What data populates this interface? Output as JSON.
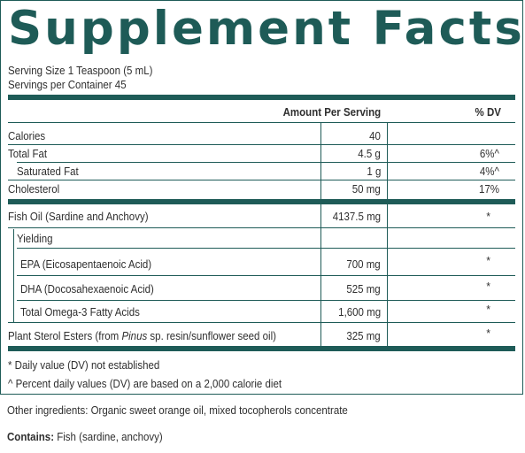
{
  "title": "Supplement Facts",
  "serving_size": "Serving Size 1 Teaspoon (5 mL)",
  "servings_per_container": "Servings per Container 45",
  "header": {
    "amount": "Amount Per Serving",
    "dv": "% DV"
  },
  "rows_a": [
    {
      "name": "Calories",
      "amount": "40",
      "dv": ""
    },
    {
      "name": "Total Fat",
      "amount": "4.5 g",
      "dv": "6%^"
    },
    {
      "name": "Saturated Fat",
      "amount": "1 g",
      "dv": "4%^"
    },
    {
      "name": "Cholesterol",
      "amount": "50 mg",
      "dv": "17%"
    }
  ],
  "rows_b": [
    {
      "name": "Fish Oil (Sardine and Anchovy)",
      "amount": "4137.5 mg",
      "dv": "*"
    },
    {
      "name": "Yielding",
      "amount": "",
      "dv": ""
    },
    {
      "name": "EPA (Eicosapentaenoic Acid)",
      "amount": "700 mg",
      "dv": "*"
    },
    {
      "name": "DHA (Docosahexaenoic Acid)",
      "amount": "525 mg",
      "dv": "*"
    },
    {
      "name": "Total Omega-3 Fatty Acids",
      "amount": "1,600 mg",
      "dv": "*"
    },
    {
      "name_prefix": "Plant Sterol Esters (from ",
      "name_italic": "Pinus",
      "name_suffix": " sp. resin/sunflower seed oil)",
      "amount": "325 mg",
      "dv": "*"
    }
  ],
  "footnotes": [
    "* Daily value (DV) not established",
    "^ Percent daily values (DV) are based on a 2,000 calorie diet"
  ],
  "other_ingredients": "Other ingredients: Organic sweet orange oil, mixed tocopherols concentrate",
  "contains_label": "Contains:",
  "contains_value": " Fish (sardine, anchovy)",
  "colors": {
    "accent": "#1e5b57",
    "text": "#2f2f2f"
  }
}
